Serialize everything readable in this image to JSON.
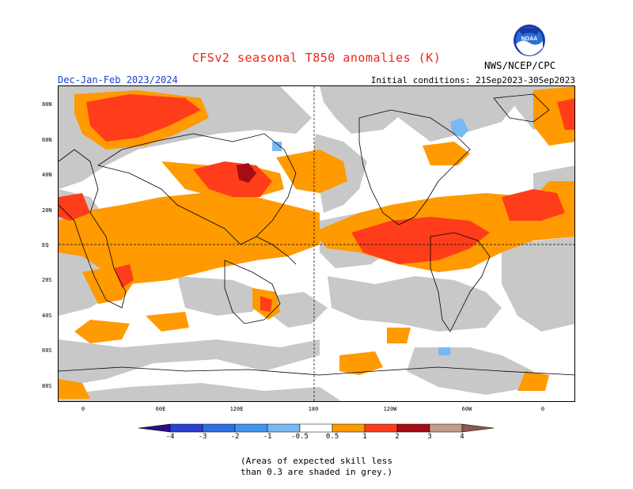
{
  "header": {
    "title": "CFSv2 seasonal T850 anomalies (K)",
    "season": "Dec-Jan-Feb 2023/2024",
    "initial_conditions": "Initial conditions: 21Sep2023-30Sep2023",
    "agency": "NWS/NCEP/CPC",
    "logo_text": "NOAA"
  },
  "map": {
    "lat_labels": [
      "80N",
      "60N",
      "40N",
      "20N",
      "EQ",
      "20S",
      "40S",
      "60S",
      "80S"
    ],
    "lon_labels": [
      "0",
      "60E",
      "120E",
      "180",
      "120W",
      "60W",
      "0"
    ]
  },
  "legend": {
    "labels": [
      "-4",
      "-3",
      "-2",
      "-1",
      "-0.5",
      "0.5",
      "1",
      "2",
      "3",
      "4"
    ],
    "colors": {
      "lt_-4": "#2a0f84",
      "-4_-3": "#2b3fd0",
      "-3_-2": "#2f6ee0",
      "-2_-1": "#3f96ea",
      "-1_-0.5": "#79b8f2",
      "-0.5_0.5": "#ffffff",
      "0.5_1": "#ff9a00",
      "1_2": "#ff3d1a",
      "2_3": "#a50d12",
      "3_4": "#c49c8c",
      "gt_4": "#8b5a4a",
      "low_skill": "#c8c8c8"
    }
  },
  "note": {
    "line1": "(Areas of expected skill less",
    "line2": "than 0.3 are shaded in grey.)"
  }
}
